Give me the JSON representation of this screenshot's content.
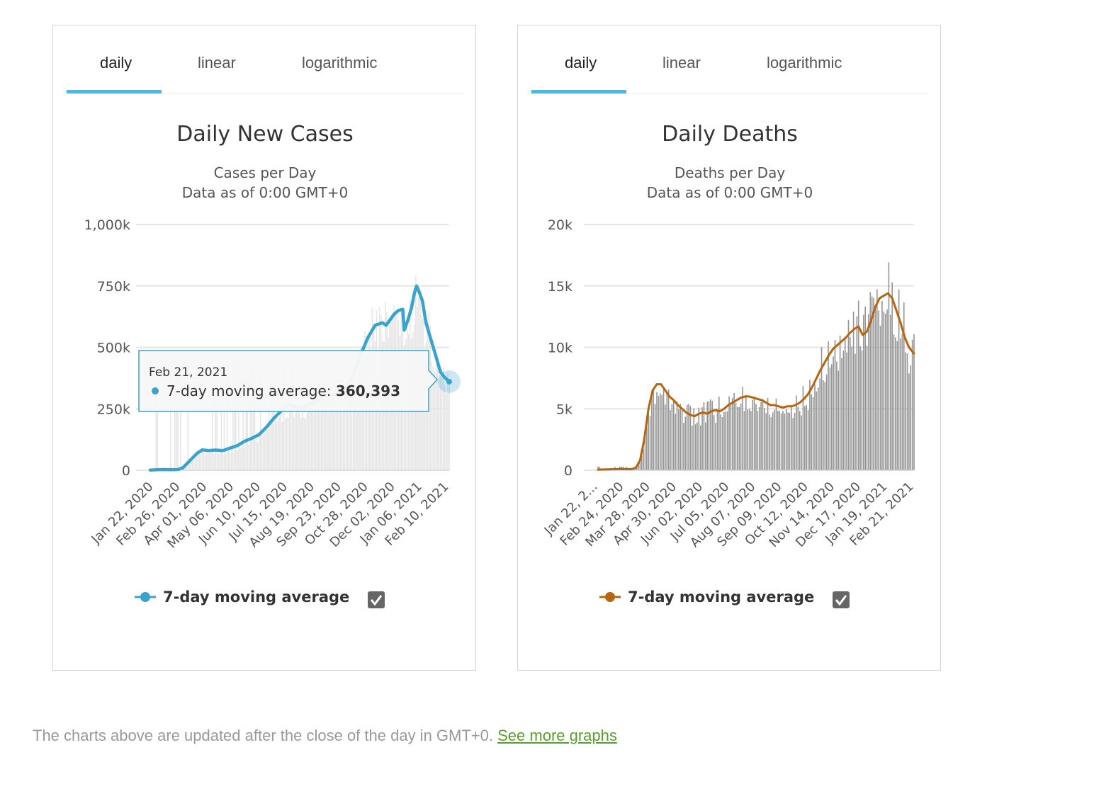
{
  "charts": [
    {
      "tabs": [
        "daily",
        "linear",
        "logarithmic"
      ],
      "active_tab": "daily",
      "legend_label": "7-day moving average",
      "tooltip": {
        "date": "Feb 21, 2021",
        "series": "7-day moving average:",
        "value": "360,393"
      }
    },
    {
      "tabs": [
        "daily",
        "linear",
        "logarithmic"
      ],
      "active_tab": "daily",
      "legend_label": "7-day moving average"
    }
  ],
  "footer": {
    "text": "The charts above are updated after the close of the day in GMT+0.",
    "link": "See more graphs"
  },
  "chart_data": [
    {
      "type": "bar",
      "title": "Daily New Cases",
      "subtitle": [
        "Cases per Day",
        "Data as of 0:00 GMT+0"
      ],
      "ylim": [
        0,
        1000000
      ],
      "y_ticks": [
        0,
        250000,
        500000,
        750000,
        1000000
      ],
      "y_tick_labels": [
        "0",
        "250k",
        "500k",
        "750k",
        "1,000k"
      ],
      "x_tick_labels": [
        "Jan 22, 2020",
        "Feb 26, 2020",
        "Apr 01, 2020",
        "May 06, 2020",
        "Jun 10, 2020",
        "Jul 15, 2020",
        "Aug 19, 2020",
        "Sep 23, 2020",
        "Oct 28, 2020",
        "Dec 02, 2020",
        "Jan 06, 2021",
        "Feb 10, 2021"
      ],
      "x_range": [
        "Jan 22, 2020",
        "Feb 21, 2021"
      ],
      "grid": true,
      "colors": {
        "bars": "#e4e4e4",
        "line": "#39a3cc"
      },
      "series": [
        {
          "name": "7-day moving average",
          "points": [
            [
              0,
              1000
            ],
            [
              10,
              2000
            ],
            [
              20,
              3000
            ],
            [
              30,
              2000
            ],
            [
              38,
              3000
            ],
            [
              45,
              10000
            ],
            [
              55,
              40000
            ],
            [
              65,
              70000
            ],
            [
              72,
              83000
            ],
            [
              80,
              80000
            ],
            [
              90,
              82000
            ],
            [
              100,
              80000
            ],
            [
              110,
              90000
            ],
            [
              120,
              100000
            ],
            [
              130,
              118000
            ],
            [
              140,
              130000
            ],
            [
              150,
              145000
            ],
            [
              160,
              175000
            ],
            [
              170,
              210000
            ],
            [
              180,
              240000
            ],
            [
              190,
              265000
            ],
            [
              200,
              260000
            ],
            [
              210,
              250000
            ],
            [
              220,
              270000
            ],
            [
              230,
              280000
            ],
            [
              240,
              300000
            ],
            [
              250,
              305000
            ],
            [
              260,
              310000
            ],
            [
              270,
              330000
            ],
            [
              280,
              390000
            ],
            [
              290,
              470000
            ],
            [
              300,
              540000
            ],
            [
              310,
              590000
            ],
            [
              320,
              600000
            ],
            [
              325,
              590000
            ],
            [
              330,
              610000
            ],
            [
              336,
              635000
            ],
            [
              342,
              650000
            ],
            [
              348,
              655000
            ],
            [
              350,
              570000
            ],
            [
              355,
              610000
            ],
            [
              360,
              660000
            ],
            [
              364,
              720000
            ],
            [
              367,
              750000
            ],
            [
              370,
              730000
            ],
            [
              375,
              690000
            ],
            [
              380,
              600000
            ],
            [
              385,
              550000
            ],
            [
              390,
              500000
            ],
            [
              395,
              450000
            ],
            [
              400,
              400000
            ],
            [
              405,
              380000
            ],
            [
              412,
              360393
            ]
          ]
        },
        {
          "name": "daily",
          "points": [
            [
              280,
              460000
            ],
            [
              290,
              540000
            ],
            [
              300,
              640000
            ],
            [
              310,
              680000
            ],
            [
              320,
              700000
            ],
            [
              330,
              660000
            ],
            [
              340,
              700000
            ],
            [
              350,
              620000
            ],
            [
              360,
              760000
            ],
            [
              364,
              840000
            ],
            [
              370,
              780000
            ],
            [
              380,
              700000
            ],
            [
              390,
              560000
            ],
            [
              400,
              430000
            ],
            [
              412,
              400000
            ]
          ]
        }
      ]
    },
    {
      "type": "bar",
      "title": "Daily Deaths",
      "subtitle": [
        "Deaths per Day",
        "Data as of 0:00 GMT+0"
      ],
      "ylim": [
        0,
        20000
      ],
      "y_ticks": [
        0,
        5000,
        10000,
        15000,
        20000
      ],
      "y_tick_labels": [
        "0",
        "5k",
        "10k",
        "15k",
        "20k"
      ],
      "x_tick_labels": [
        "Jan 22, 2...",
        "Feb 24, 2020",
        "Mar 28, 2020",
        "Apr 30, 2020",
        "Jun 02, 2020",
        "Jul 05, 2020",
        "Aug 07, 2020",
        "Sep 09, 2020",
        "Oct 12, 2020",
        "Nov 14, 2020",
        "Dec 17, 2020",
        "Jan 19, 2021",
        "Feb 21, 2021"
      ],
      "x_range": [
        "Jan 22, 2020",
        "Feb 21, 2021"
      ],
      "grid": true,
      "colors": {
        "bars": "#959595",
        "line": "#b5650d"
      },
      "series": [
        {
          "name": "7-day moving average",
          "points": [
            [
              0,
              50
            ],
            [
              15,
              80
            ],
            [
              30,
              100
            ],
            [
              40,
              90
            ],
            [
              45,
              200
            ],
            [
              50,
              800
            ],
            [
              55,
              2500
            ],
            [
              60,
              5000
            ],
            [
              65,
              6500
            ],
            [
              70,
              7000
            ],
            [
              75,
              7000
            ],
            [
              80,
              6500
            ],
            [
              85,
              6000
            ],
            [
              90,
              5700
            ],
            [
              95,
              5300
            ],
            [
              100,
              5000
            ],
            [
              105,
              4700
            ],
            [
              110,
              4500
            ],
            [
              115,
              4400
            ],
            [
              120,
              4600
            ],
            [
              125,
              4700
            ],
            [
              130,
              4600
            ],
            [
              135,
              4800
            ],
            [
              140,
              4900
            ],
            [
              145,
              4800
            ],
            [
              150,
              5000
            ],
            [
              155,
              5300
            ],
            [
              160,
              5500
            ],
            [
              165,
              5700
            ],
            [
              170,
              5900
            ],
            [
              175,
              6000
            ],
            [
              180,
              6000
            ],
            [
              185,
              5900
            ],
            [
              190,
              5800
            ],
            [
              195,
              5700
            ],
            [
              200,
              5500
            ],
            [
              205,
              5300
            ],
            [
              210,
              5300
            ],
            [
              215,
              5200
            ],
            [
              220,
              5100
            ],
            [
              225,
              5200
            ],
            [
              230,
              5200
            ],
            [
              235,
              5300
            ],
            [
              240,
              5500
            ],
            [
              245,
              5800
            ],
            [
              250,
              6200
            ],
            [
              255,
              6800
            ],
            [
              260,
              7500
            ],
            [
              265,
              8200
            ],
            [
              270,
              8800
            ],
            [
              275,
              9400
            ],
            [
              280,
              9900
            ],
            [
              285,
              10200
            ],
            [
              290,
              10500
            ],
            [
              295,
              10800
            ],
            [
              300,
              11200
            ],
            [
              305,
              11500
            ],
            [
              310,
              11700
            ],
            [
              315,
              11000
            ],
            [
              320,
              11300
            ],
            [
              325,
              12200
            ],
            [
              330,
              13300
            ],
            [
              335,
              14000
            ],
            [
              340,
              14200
            ],
            [
              345,
              14400
            ],
            [
              350,
              14000
            ],
            [
              355,
              13000
            ],
            [
              360,
              12000
            ],
            [
              365,
              10800
            ],
            [
              370,
              10000
            ],
            [
              376,
              9500
            ]
          ]
        },
        {
          "name": "daily",
          "points": [
            [
              45,
              300
            ],
            [
              55,
              3000
            ],
            [
              62,
              7000
            ],
            [
              67,
              8200
            ],
            [
              72,
              8500
            ],
            [
              80,
              7000
            ],
            [
              90,
              6000
            ],
            [
              100,
              5500
            ],
            [
              110,
              5400
            ],
            [
              120,
              5500
            ],
            [
              140,
              6000
            ],
            [
              160,
              6500
            ],
            [
              170,
              7100
            ],
            [
              180,
              6800
            ],
            [
              190,
              6400
            ],
            [
              200,
              6300
            ],
            [
              210,
              6000
            ],
            [
              220,
              6000
            ],
            [
              230,
              5800
            ],
            [
              240,
              6500
            ],
            [
              250,
              7600
            ],
            [
              260,
              9000
            ],
            [
              270,
              10800
            ],
            [
              280,
              11600
            ],
            [
              290,
              12500
            ],
            [
              300,
              13300
            ],
            [
              310,
              13800
            ],
            [
              320,
              14000
            ],
            [
              330,
              15500
            ],
            [
              340,
              16800
            ],
            [
              345,
              17500
            ],
            [
              350,
              17000
            ],
            [
              360,
              14500
            ],
            [
              368,
              13000
            ],
            [
              376,
              11500
            ]
          ]
        }
      ]
    }
  ]
}
